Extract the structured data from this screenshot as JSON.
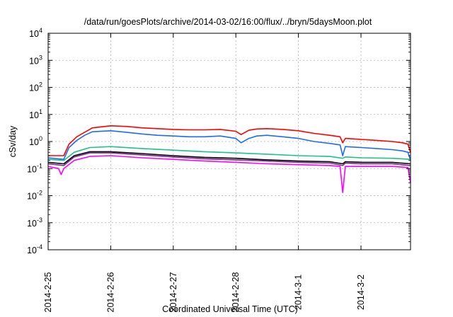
{
  "chart_data": {
    "type": "line",
    "title": "/data/run/goesPlots/archive/2014-03-02/16:00/flux/../bryn/5daysMoon.plot",
    "xlabel": "Coordinated Universal Time (UTC)",
    "ylabel": "cSv/day",
    "y_scale": "log",
    "ylim": [
      0.0001,
      10000
    ],
    "xlim": [
      "2014-02-25 00:00",
      "2014-03-02 19:00"
    ],
    "grid": true,
    "y_ticks": [
      {
        "base": "10",
        "exp": "-4",
        "value": 0.0001
      },
      {
        "base": "10",
        "exp": "-3",
        "value": 0.001
      },
      {
        "base": "10",
        "exp": "-2",
        "value": 0.01
      },
      {
        "base": "10",
        "exp": "-1",
        "value": 0.1
      },
      {
        "base": "10",
        "exp": "0",
        "value": 1
      },
      {
        "base": "10",
        "exp": "1",
        "value": 10
      },
      {
        "base": "10",
        "exp": "2",
        "value": 100
      },
      {
        "base": "10",
        "exp": "3",
        "value": 1000
      },
      {
        "base": "10",
        "exp": "4",
        "value": 10000
      }
    ],
    "x_ticks": [
      {
        "label": "2014-2-25",
        "t": "2014-02-25 00:00"
      },
      {
        "label": "2014-2-26",
        "t": "2014-02-26 00:00"
      },
      {
        "label": "2014-2-27",
        "t": "2014-02-27 00:00"
      },
      {
        "label": "2014-2-28",
        "t": "2014-02-28 00:00"
      },
      {
        "label": "2014-3-1",
        "t": "2014-03-01 00:00"
      },
      {
        "label": "2014-3-2",
        "t": "2014-03-02 00:00"
      }
    ],
    "series": [
      {
        "color": "#ff0000",
        "x": [
          "2014-02-25 00:00",
          "2014-02-25 06:00",
          "2014-02-25 08:00",
          "2014-02-25 11:00",
          "2014-02-25 14:00",
          "2014-02-25 17:00",
          "2014-02-26 00:00",
          "2014-02-26 06:00",
          "2014-02-26 12:00",
          "2014-02-26 18:00",
          "2014-02-27 00:00",
          "2014-02-27 06:00",
          "2014-02-27 12:00",
          "2014-02-27 18:00",
          "2014-02-28 00:00",
          "2014-02-28 02:00",
          "2014-02-28 05:00",
          "2014-02-28 08:00",
          "2014-02-28 12:00",
          "2014-02-28 18:00",
          "2014-03-01 00:00",
          "2014-03-01 06:00",
          "2014-03-01 12:00",
          "2014-03-01 16:00",
          "2014-03-01 17:00",
          "2014-03-01 18:00",
          "2014-03-02 00:00",
          "2014-03-02 06:00",
          "2014-03-02 12:00",
          "2014-03-02 16:00",
          "2014-03-02 18:00",
          "2014-03-02 19:00"
        ],
        "y": [
          0.3,
          0.3,
          0.8,
          1.5,
          2.2,
          3.2,
          3.8,
          3.6,
          3.2,
          3.0,
          2.8,
          2.7,
          2.7,
          2.8,
          2.4,
          1.8,
          2.6,
          2.9,
          3.0,
          2.8,
          2.5,
          2.0,
          1.7,
          1.5,
          0.9,
          1.3,
          1.2,
          1.1,
          1.0,
          0.9,
          0.8,
          0.4
        ]
      },
      {
        "color": "#1e6cf0",
        "x": [
          "2014-02-25 00:00",
          "2014-02-25 06:00",
          "2014-02-25 08:00",
          "2014-02-25 11:00",
          "2014-02-25 14:00",
          "2014-02-25 17:00",
          "2014-02-26 00:00",
          "2014-02-26 06:00",
          "2014-02-26 12:00",
          "2014-02-26 18:00",
          "2014-02-27 00:00",
          "2014-02-27 06:00",
          "2014-02-27 12:00",
          "2014-02-27 18:00",
          "2014-02-28 00:00",
          "2014-02-28 02:00",
          "2014-02-28 05:00",
          "2014-02-28 08:00",
          "2014-02-28 12:00",
          "2014-02-28 18:00",
          "2014-03-01 00:00",
          "2014-03-01 06:00",
          "2014-03-01 12:00",
          "2014-03-01 16:00",
          "2014-03-01 17:00",
          "2014-03-01 18:00",
          "2014-03-02 00:00",
          "2014-03-02 06:00",
          "2014-03-02 12:00",
          "2014-03-02 16:00",
          "2014-03-02 18:00",
          "2014-03-02 19:00"
        ],
        "y": [
          0.25,
          0.22,
          0.6,
          1.1,
          1.7,
          2.3,
          2.5,
          2.2,
          1.9,
          1.7,
          1.6,
          1.5,
          1.5,
          1.6,
          1.3,
          0.9,
          1.3,
          1.6,
          1.7,
          1.5,
          1.3,
          1.0,
          0.85,
          0.75,
          0.3,
          0.65,
          0.6,
          0.55,
          0.5,
          0.45,
          0.4,
          0.2
        ]
      },
      {
        "color": "#1fc28a",
        "x": [
          "2014-02-25 00:00",
          "2014-02-25 06:00",
          "2014-02-25 10:00",
          "2014-02-25 16:00",
          "2014-02-26 00:00",
          "2014-02-26 12:00",
          "2014-02-27 00:00",
          "2014-02-27 12:00",
          "2014-02-28 00:00",
          "2014-02-28 12:00",
          "2014-03-01 00:00",
          "2014-03-01 12:00",
          "2014-03-01 17:00",
          "2014-03-01 18:00",
          "2014-03-02 00:00",
          "2014-03-02 12:00",
          "2014-03-02 19:00"
        ],
        "y": [
          0.22,
          0.2,
          0.4,
          0.6,
          0.65,
          0.55,
          0.48,
          0.42,
          0.38,
          0.34,
          0.3,
          0.28,
          0.24,
          0.27,
          0.25,
          0.24,
          0.22
        ]
      },
      {
        "color": "#000000",
        "x": [
          "2014-02-25 00:00",
          "2014-02-25 06:00",
          "2014-02-25 10:00",
          "2014-02-25 16:00",
          "2014-02-26 00:00",
          "2014-02-26 12:00",
          "2014-02-27 00:00",
          "2014-02-27 12:00",
          "2014-02-28 00:00",
          "2014-02-28 12:00",
          "2014-03-01 00:00",
          "2014-03-01 12:00",
          "2014-03-01 17:00",
          "2014-03-01 18:00",
          "2014-03-02 00:00",
          "2014-03-02 12:00",
          "2014-03-02 19:00"
        ],
        "y": [
          0.17,
          0.15,
          0.3,
          0.42,
          0.42,
          0.36,
          0.3,
          0.26,
          0.24,
          0.21,
          0.19,
          0.18,
          0.15,
          0.18,
          0.17,
          0.17,
          0.15
        ]
      },
      {
        "color": "#7a2a8a",
        "x": [
          "2014-02-25 00:00",
          "2014-02-25 06:00",
          "2014-02-25 10:00",
          "2014-02-25 16:00",
          "2014-02-26 00:00",
          "2014-02-26 12:00",
          "2014-02-27 00:00",
          "2014-02-27 12:00",
          "2014-02-28 00:00",
          "2014-02-28 12:00",
          "2014-03-01 00:00",
          "2014-03-01 12:00",
          "2014-03-01 17:00",
          "2014-03-01 18:00",
          "2014-03-02 00:00",
          "2014-03-02 12:00",
          "2014-03-02 19:00"
        ],
        "y": [
          0.15,
          0.13,
          0.27,
          0.38,
          0.38,
          0.32,
          0.27,
          0.23,
          0.21,
          0.19,
          0.17,
          0.16,
          0.13,
          0.16,
          0.15,
          0.15,
          0.13
        ]
      },
      {
        "color": "#ff00ff",
        "x": [
          "2014-02-25 00:00",
          "2014-02-25 04:00",
          "2014-02-25 05:00",
          "2014-02-25 06:00",
          "2014-02-25 10:00",
          "2014-02-25 16:00",
          "2014-02-26 00:00",
          "2014-02-26 12:00",
          "2014-02-27 00:00",
          "2014-02-27 12:00",
          "2014-02-28 00:00",
          "2014-02-28 12:00",
          "2014-03-01 00:00",
          "2014-03-01 12:00",
          "2014-03-01 16:00",
          "2014-03-01 17:00",
          "2014-03-01 18:00",
          "2014-03-02 00:00",
          "2014-03-02 12:00",
          "2014-03-02 18:00",
          "2014-03-02 19:00"
        ],
        "y": [
          0.12,
          0.1,
          0.06,
          0.1,
          0.2,
          0.28,
          0.3,
          0.25,
          0.22,
          0.19,
          0.17,
          0.15,
          0.14,
          0.13,
          0.12,
          0.013,
          0.12,
          0.12,
          0.12,
          0.11,
          0.03
        ]
      }
    ]
  }
}
